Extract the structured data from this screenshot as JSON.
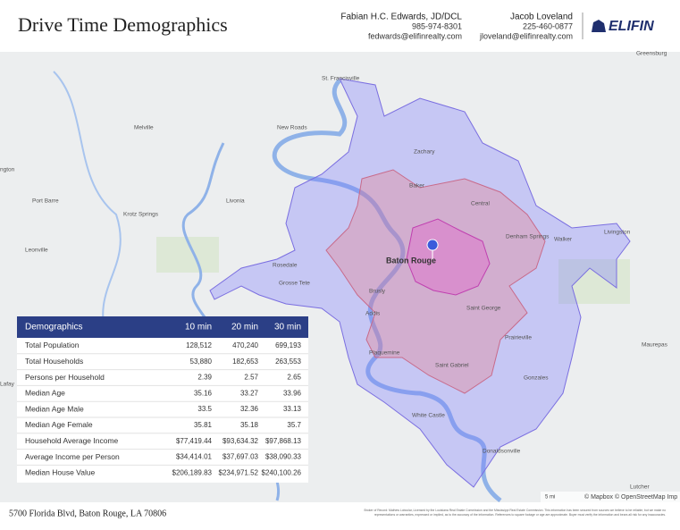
{
  "header": {
    "title": "Drive Time Demographics",
    "contacts": [
      {
        "name": "Fabian H.C. Edwards, JD/DCL",
        "phone": "985-974-8301",
        "email": "fedwards@elifinrealty.com"
      },
      {
        "name": "Jacob Loveland",
        "phone": "225-460-0877",
        "email": "jloveland@elifinrealty.com"
      }
    ],
    "logo": "ELIFIN"
  },
  "map": {
    "labels": [
      "St. Francisville",
      "Greensburg",
      "Melville",
      "New Roads",
      "Zachary",
      "Baker",
      "Port Barre",
      "Krotz Springs",
      "Livonia",
      "Central",
      "Denham Springs",
      "Walker",
      "Livingston",
      "Leonville",
      "Rosedale",
      "Grosse Tete",
      "Baton Rouge",
      "Brusly",
      "Addis",
      "Saint George",
      "Prairieville",
      "Maurepas",
      "Plaquemine",
      "Saint Gabriel",
      "Gonzales",
      "White Castle",
      "Donaldsonville",
      "Lutcher",
      "Lafay",
      "ngton"
    ],
    "scale": "5 mi",
    "attribution": "© Mapbox © OpenStreetMap Imp"
  },
  "table": {
    "header": [
      "Demographics",
      "10 min",
      "20 min",
      "30 min"
    ],
    "rows": [
      [
        "Total Population",
        "128,512",
        "470,240",
        "699,193"
      ],
      [
        "Total Households",
        "53,880",
        "182,653",
        "263,553"
      ],
      [
        "Persons per Household",
        "2.39",
        "2.57",
        "2.65"
      ],
      [
        "Median Age",
        "35.16",
        "33.27",
        "33.96"
      ],
      [
        "Median Age Male",
        "33.5",
        "32.36",
        "33.13"
      ],
      [
        "Median Age Female",
        "35.81",
        "35.18",
        "35.7"
      ],
      [
        "Household Average Income",
        "$77,419.44",
        "$93,634.32",
        "$97,868.13"
      ],
      [
        "Average Income per Person",
        "$34,414.01",
        "$37,697.03",
        "$38,090.33"
      ],
      [
        "Median House Value",
        "$206,189.83",
        "$234,971.52",
        "$240,100.26"
      ]
    ]
  },
  "footer": {
    "address": "5700 Florida Blvd, Baton Rouge, LA 70806",
    "disclaimer": [
      "Broker of Record: Mathew Loboclar, Licensed by the Louisiana Real Estate Commission and the Mississippi Real Estate Commission. This information has been secured from sources we believe to be reliable, but we make no",
      "representations or warranties, expressed or implied, as to the accuracy of the information. References to square footage or age are approximate. Buyer must verify the information and bears all risk for any inaccuracies."
    ]
  }
}
